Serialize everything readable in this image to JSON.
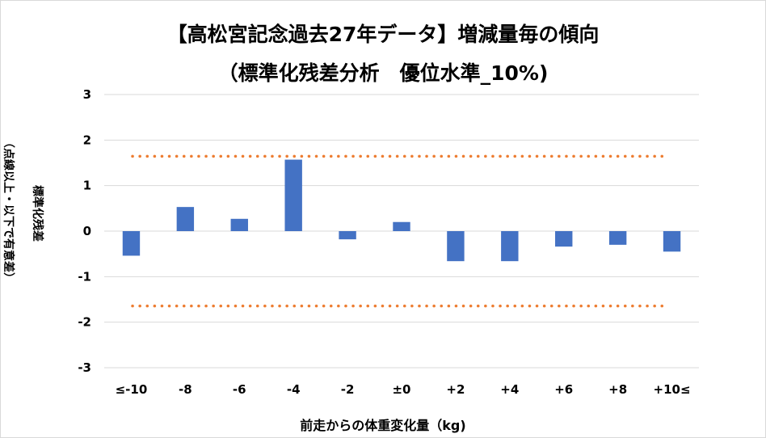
{
  "chart_data": {
    "type": "bar",
    "title": "【高松宮記念過去27年データ】増減量毎の傾向",
    "subtitle": "（標準化残差分析　優位水準_10%)",
    "xlabel": "前走からの体重変化量（kg)",
    "ylabel": "標準化残差",
    "ylabel_note": "（点線以上・以下で有意差）",
    "categories": [
      "≤-10",
      "-8",
      "-6",
      "-4",
      "-2",
      "±0",
      "+2",
      "+4",
      "+6",
      "+8",
      "+10≤"
    ],
    "values": [
      -0.54,
      0.53,
      0.27,
      1.57,
      -0.18,
      0.2,
      -0.66,
      -0.66,
      -0.34,
      -0.3,
      -0.45
    ],
    "ylim": [
      -3,
      3
    ],
    "yticks": [
      -3,
      -2,
      -1,
      0,
      1,
      2,
      3
    ],
    "threshold": 1.645,
    "grid": true,
    "legend": "none",
    "colors": {
      "bar": "#4472C4",
      "threshold": "#ED7D31",
      "grid": "#d9d9d9"
    }
  }
}
